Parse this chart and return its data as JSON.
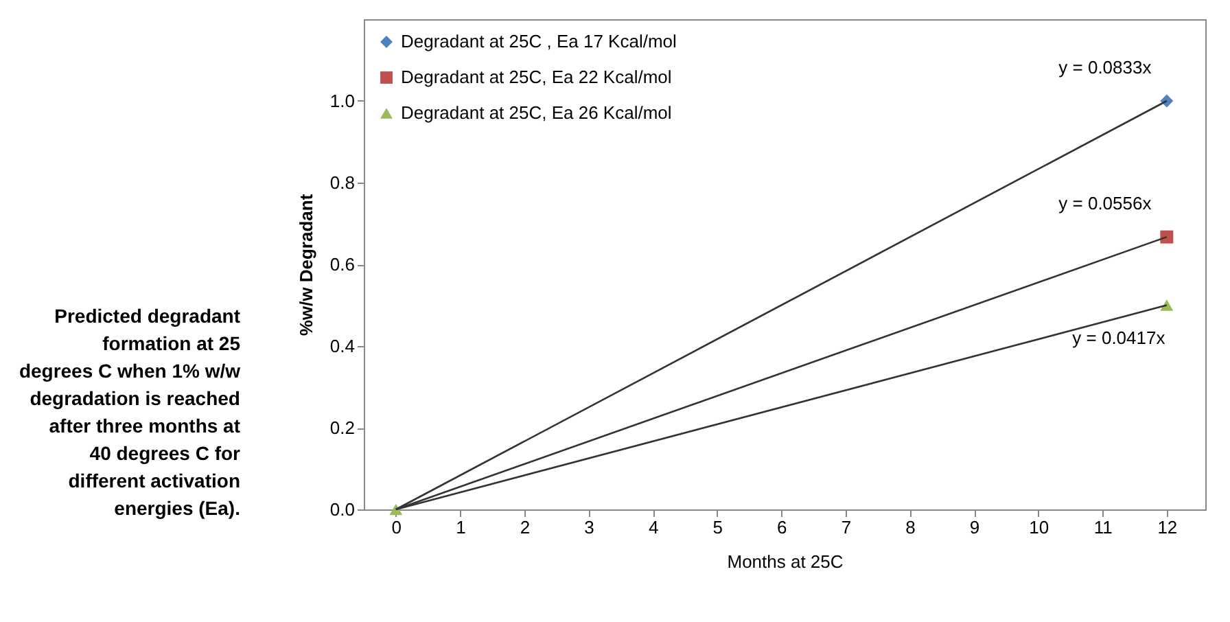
{
  "chart_data": {
    "type": "scatter",
    "xlabel": "Months at 25C",
    "ylabel": "%w/w Degradant",
    "x": [
      0,
      12
    ],
    "series": [
      {
        "name": "Degradant at 25C , Ea 17 Kcal/mol",
        "color": "#4f81bd",
        "marker": "diamond",
        "values": [
          null,
          1.0
        ]
      },
      {
        "name": "Degradant at 25C, Ea 22 Kcal/mol",
        "color": "#c0504d",
        "marker": "square",
        "values": [
          null,
          0.667
        ]
      },
      {
        "name": "Degradant at 25C, Ea 26 Kcal/mol",
        "color": "#9bbb59",
        "marker": "triangle",
        "values": [
          0,
          0.5
        ]
      },
      {
        "type": "line",
        "color": "#333333",
        "values": [
          0,
          1.0
        ]
      },
      {
        "type": "line",
        "color": "#333333",
        "values": [
          0,
          0.667
        ]
      },
      {
        "type": "line",
        "color": "#333333",
        "values": [
          0,
          0.5
        ]
      }
    ],
    "annotations": [
      "y = 0.0833x",
      "y = 0.0556x",
      "y = 0.0417x",
      "Predicted degradant formation at 25 degrees C when 1% w/w degradation is reached after three months at 40 degrees C for different activation energies (Ea)."
    ],
    "xlim": [
      -0.5,
      12.6
    ],
    "xticks": [
      0,
      1,
      2,
      3,
      4,
      5,
      6,
      7,
      8,
      9,
      10,
      11,
      12
    ],
    "ylim": [
      0,
      1.2
    ],
    "yticks": [
      {
        "value": 0,
        "label": "0.0"
      },
      0.2,
      0.4,
      0.6,
      0.8,
      {
        "value": 1,
        "label": "1.0"
      }
    ],
    "grid": false,
    "legend": "top left"
  }
}
